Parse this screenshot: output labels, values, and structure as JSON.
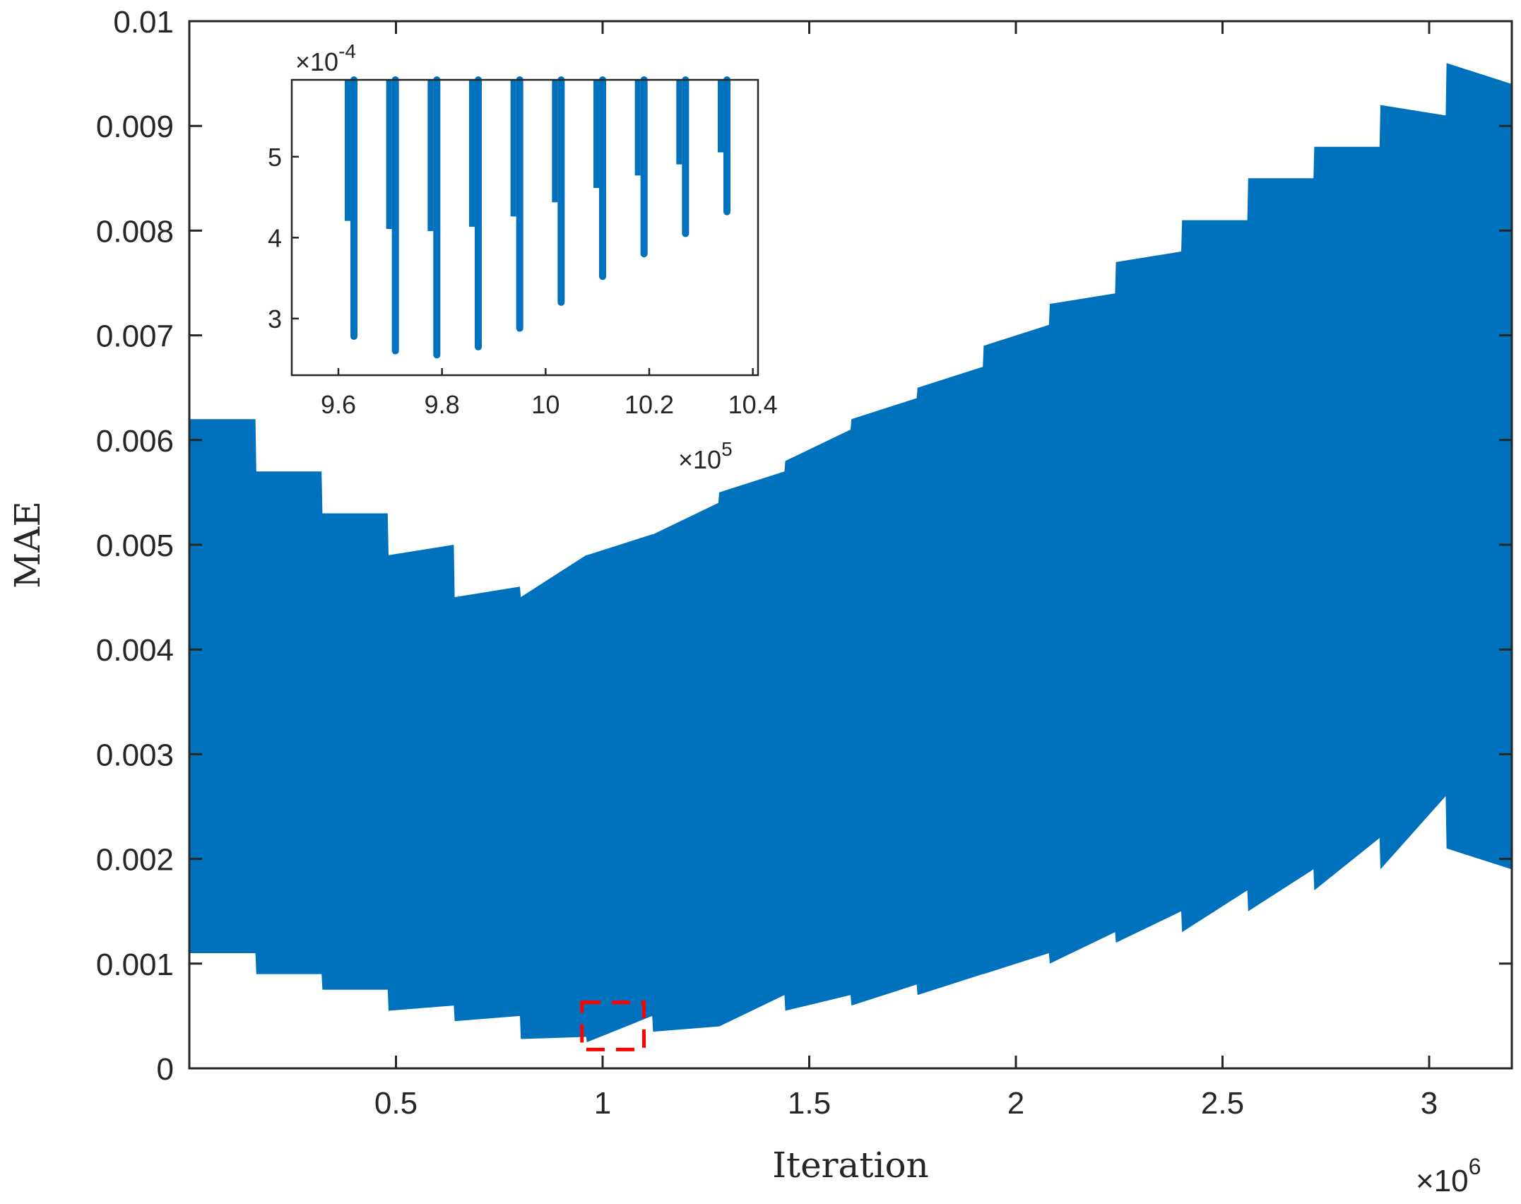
{
  "chart_data": [
    {
      "type": "area",
      "xlabel": "Iteration",
      "ylabel": "MAE",
      "x_multiplier_label": "×10",
      "x_multiplier_exp": "6",
      "xlim": [
        0,
        3.2
      ],
      "ylim": [
        0,
        0.01
      ],
      "x_unit_scale": 1000000,
      "xticks": [
        0.5,
        1,
        1.5,
        2,
        2.5,
        3
      ],
      "xtick_labels": [
        "0.5",
        "1",
        "1.5",
        "2",
        "2.5",
        "3"
      ],
      "yticks": [
        0,
        0.001,
        0.002,
        0.003,
        0.004,
        0.005,
        0.006,
        0.007,
        0.008,
        0.009,
        0.01
      ],
      "ytick_labels": [
        "0",
        "0.001",
        "0.002",
        "0.003",
        "0.004",
        "0.005",
        "0.006",
        "0.007",
        "0.008",
        "0.009",
        "0.01"
      ],
      "series_color": "#0072BD",
      "band": {
        "x": [
          0,
          0.16,
          0.162,
          0.32,
          0.322,
          0.48,
          0.482,
          0.64,
          0.642,
          0.8,
          0.802,
          0.96,
          0.962,
          1.12,
          1.122,
          1.28,
          1.282,
          1.44,
          1.442,
          1.6,
          1.602,
          1.76,
          1.762,
          1.92,
          1.922,
          2.08,
          2.082,
          2.24,
          2.242,
          2.4,
          2.402,
          2.56,
          2.562,
          2.72,
          2.722,
          2.88,
          2.882,
          3.04,
          3.042,
          3.2
        ],
        "upper": [
          0.0062,
          0.0062,
          0.0057,
          0.0057,
          0.0053,
          0.0053,
          0.0049,
          0.005,
          0.0045,
          0.0046,
          0.0045,
          0.0049,
          0.0049,
          0.0051,
          0.0051,
          0.0054,
          0.0055,
          0.0057,
          0.0058,
          0.0061,
          0.0062,
          0.0064,
          0.0065,
          0.0067,
          0.0069,
          0.0071,
          0.0073,
          0.0074,
          0.0077,
          0.0078,
          0.0081,
          0.0081,
          0.0085,
          0.0085,
          0.0088,
          0.0088,
          0.0092,
          0.0091,
          0.0096,
          0.0094
        ],
        "lower": [
          0.0011,
          0.0011,
          0.0009,
          0.0009,
          0.00075,
          0.00075,
          0.00055,
          0.0006,
          0.00045,
          0.0005,
          0.00028,
          0.0003,
          0.00025,
          0.0005,
          0.00035,
          0.0004,
          0.0004,
          0.0007,
          0.00055,
          0.0007,
          0.0006,
          0.0008,
          0.0007,
          0.0009,
          0.0009,
          0.0011,
          0.001,
          0.0013,
          0.0012,
          0.0015,
          0.0013,
          0.0017,
          0.0015,
          0.0019,
          0.0017,
          0.0022,
          0.0019,
          0.0026,
          0.0021,
          0.0019
        ]
      },
      "zoom_box": {
        "x": [
          0.95,
          1.1
        ],
        "y": [
          0.00018,
          0.00063
        ],
        "color": "#ff0000"
      }
    },
    {
      "type": "bar",
      "inset": true,
      "x_multiplier_label": "×10",
      "x_multiplier_exp": "5",
      "y_multiplier_label": "×10",
      "y_multiplier_exp": "-4",
      "xlim": [
        9.51,
        10.41
      ],
      "ylim": [
        2.3,
        5.95
      ],
      "xticks": [
        9.6,
        9.8,
        10,
        10.2,
        10.4
      ],
      "xtick_labels": [
        "9.6",
        "9.8",
        "10",
        "10.2",
        "10.4"
      ],
      "yticks": [
        3,
        4,
        5
      ],
      "ytick_labels": [
        "3",
        "4",
        "5"
      ],
      "series_color": "#0072BD",
      "spikes": {
        "x": [
          9.63,
          9.71,
          9.79,
          9.87,
          9.95,
          10.03,
          10.11,
          10.19,
          10.27,
          10.35
        ],
        "min": [
          2.78,
          2.6,
          2.55,
          2.65,
          2.88,
          3.2,
          3.52,
          3.8,
          4.05,
          4.32
        ]
      }
    }
  ]
}
